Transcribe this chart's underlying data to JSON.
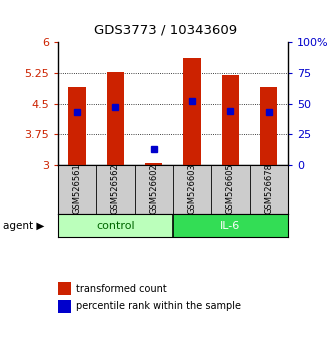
{
  "title": "GDS3773 / 10343609",
  "samples": [
    "GSM526561",
    "GSM526562",
    "GSM526602",
    "GSM526603",
    "GSM526605",
    "GSM526678"
  ],
  "transformed_counts": [
    4.9,
    5.28,
    3.05,
    5.62,
    5.2,
    4.9
  ],
  "percentile_ranks": [
    43,
    47,
    13,
    52,
    44,
    43
  ],
  "bar_bottom": 3.0,
  "ylim": [
    3.0,
    6.0
  ],
  "yticks": [
    3.0,
    3.75,
    4.5,
    5.25,
    6.0
  ],
  "ytick_labels": [
    "3",
    "3.75",
    "4.5",
    "5.25",
    "6"
  ],
  "right_yticks": [
    0,
    25,
    50,
    75,
    100
  ],
  "right_ytick_labels": [
    "0",
    "25",
    "50",
    "75",
    "100%"
  ],
  "bar_color": "#cc2200",
  "percentile_color": "#0000cc",
  "bar_width": 0.45,
  "control_color": "#bbffbb",
  "il6_color": "#33dd55",
  "ylabel_color": "#cc2200",
  "right_ylabel_color": "#0000cc",
  "background_color": "#ffffff",
  "grid_dotted": [
    3.75,
    4.5,
    5.25
  ],
  "legend_sq_red": "#cc2200",
  "legend_sq_blue": "#0000cc",
  "n_control": 3,
  "n_il6": 3
}
